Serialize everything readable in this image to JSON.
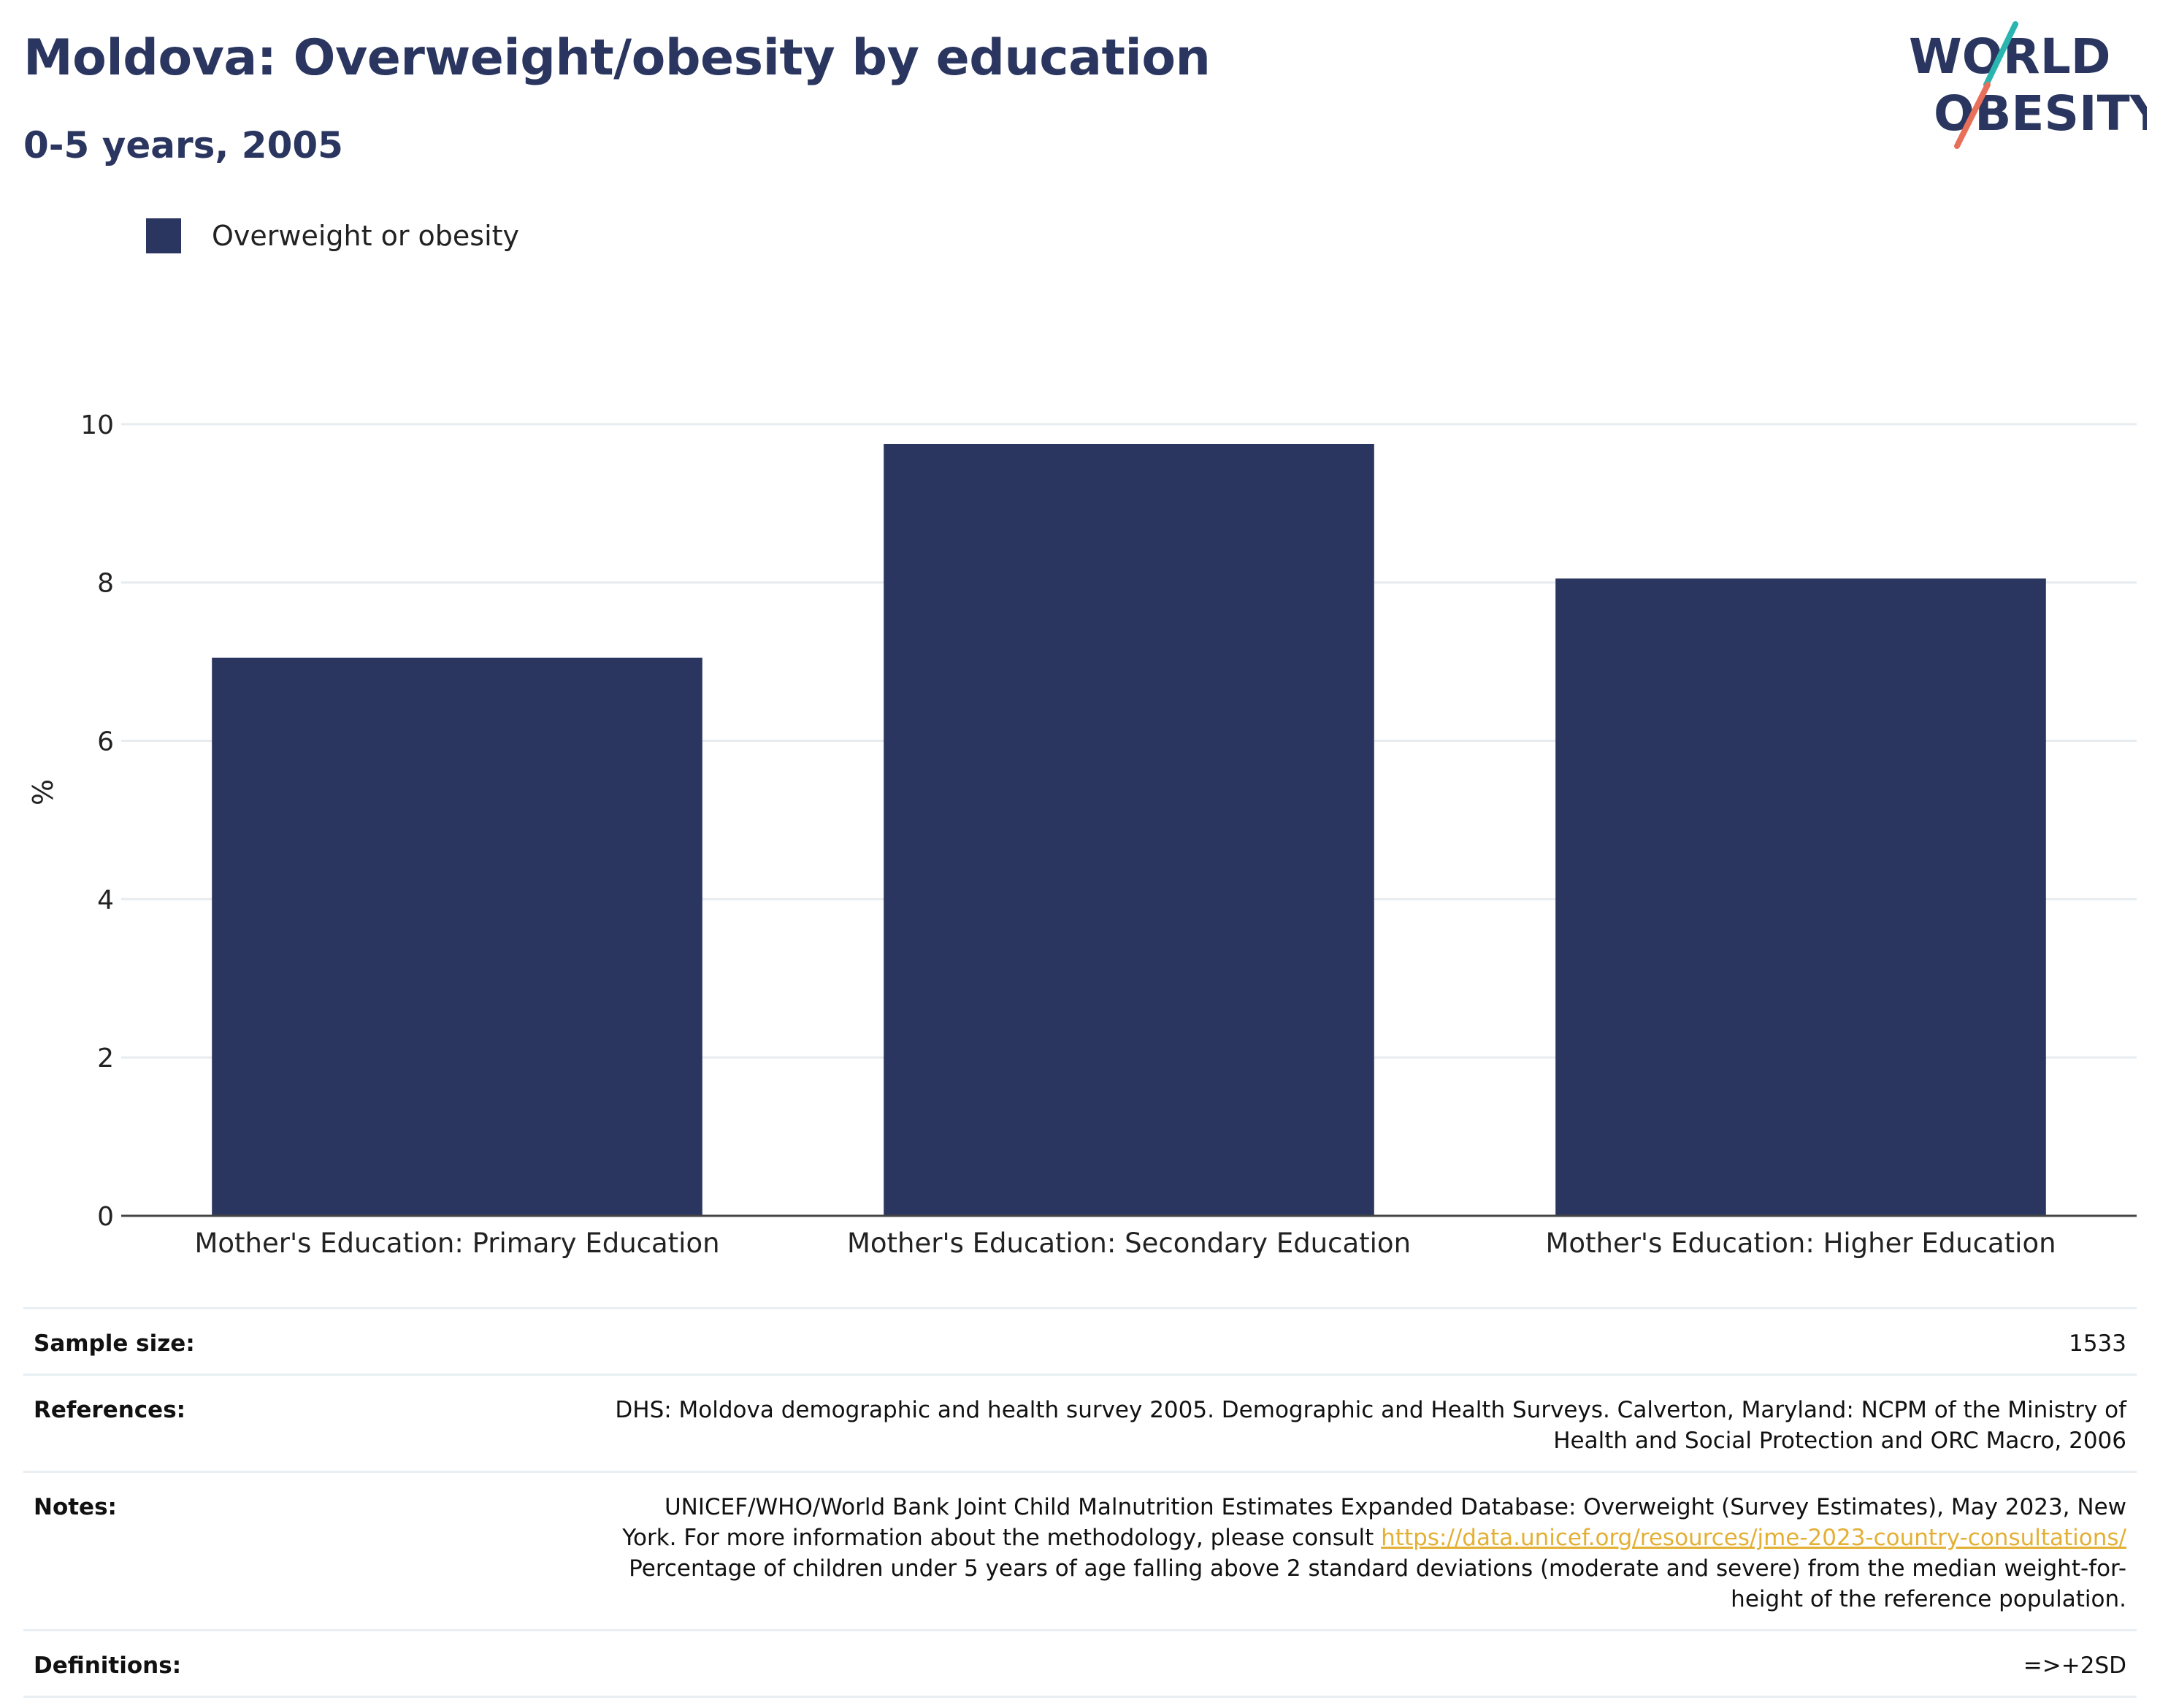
{
  "header": {
    "title": "Moldova: Overweight/obesity by education",
    "subtitle": "0-5 years, 2005"
  },
  "logo": {
    "line1": "WORLD",
    "line2": "OBESITY",
    "colors": {
      "text": "#2a365f",
      "teal": "#2bb5b0",
      "coral": "#e8705a"
    }
  },
  "colors": {
    "bar": "#2a365f",
    "grid": "#e6ecf0",
    "axis": "#444444"
  },
  "chart_data": {
    "type": "bar",
    "categories": [
      "Mother's Education: Primary Education",
      "Mother's Education: Secondary Education",
      "Mother's Education: Higher Education"
    ],
    "series": [
      {
        "name": "Overweight or obesity",
        "values": [
          7.05,
          9.75,
          8.05
        ]
      }
    ],
    "ylabel": "%",
    "ylim": [
      0,
      10.7
    ],
    "yticks": [
      0,
      2,
      4,
      6,
      8,
      10
    ],
    "grid": true,
    "legend": "top-left"
  },
  "info": {
    "sample_size": {
      "label": "Sample size:",
      "value": "1533"
    },
    "references": {
      "label": "References:",
      "value": "DHS: Moldova demographic and health survey 2005. Demographic and Health Surveys. Calverton, Maryland: NCPM of the Ministry of Health and Social Protection and ORC Macro, 2006"
    },
    "notes": {
      "label": "Notes:",
      "text_before": "UNICEF/WHO/World Bank Joint Child Malnutrition Estimates Expanded Database: Overweight (Survey Estimates), May 2023, New York. For more information about the methodology, please consult ",
      "link": "https://data.unicef.org/resources/jme-2023-country-consultations/",
      "text_after": " Percentage of children under 5 years of age falling above 2 standard deviations (moderate and severe) from the median weight-for-height of the reference population."
    },
    "definitions": {
      "label": "Definitions:",
      "value": "=>+2SD"
    }
  }
}
